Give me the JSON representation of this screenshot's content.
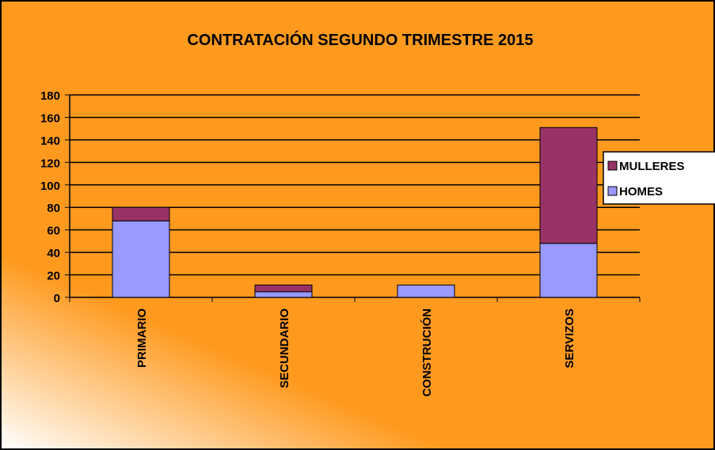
{
  "chart_data": {
    "type": "stacked_bar",
    "title": "CONTRATACIÓN SEGUNDO TRIMESTRE 2015",
    "categories": [
      "PRIMARIO",
      "SECUNDARIO",
      "CONSTRUCIÓN",
      "SERVIZOS"
    ],
    "series": [
      {
        "name": "HOMES",
        "color": "#9999ff",
        "values": [
          68,
          5,
          11,
          48
        ]
      },
      {
        "name": "MULLERES",
        "color": "#993366",
        "values": [
          12,
          6,
          0,
          103
        ]
      }
    ],
    "ylim": [
      0,
      180
    ],
    "yticks": [
      0,
      20,
      40,
      60,
      80,
      100,
      120,
      140,
      160,
      180
    ],
    "grid": true,
    "legend": "right"
  }
}
